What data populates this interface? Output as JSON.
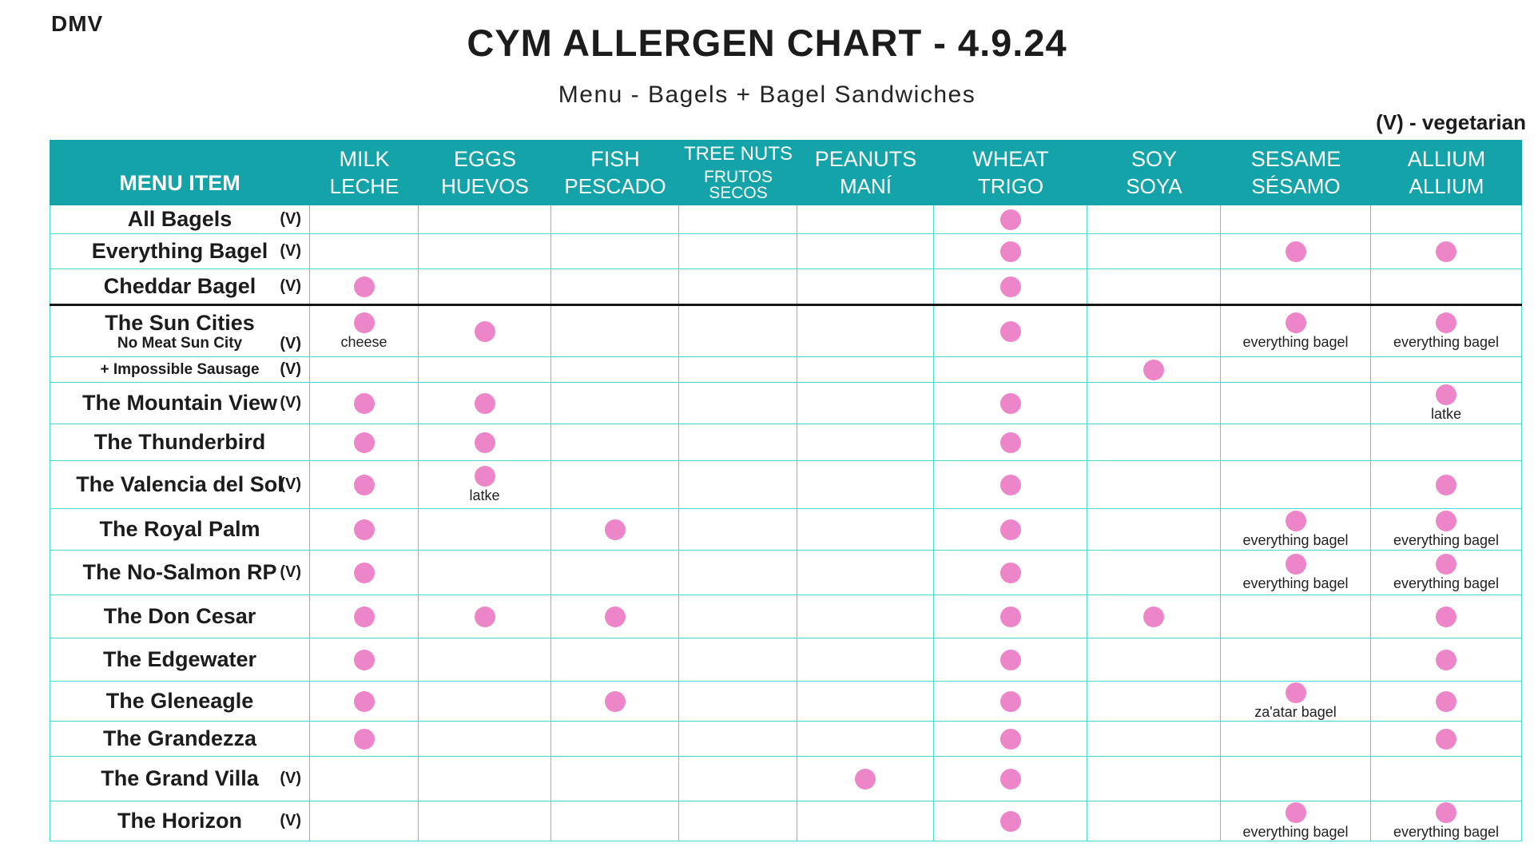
{
  "brand": "DMV",
  "header": {
    "title": "CYM ALLERGEN CHART - 4.9.24",
    "subtitle": "Menu - Bagels + Bagel Sandwiches",
    "legend": "(V) - vegetarian"
  },
  "colors": {
    "teal": "#13a3a9",
    "grid": "#44d8d0",
    "pink": "#ec86c9",
    "ink": "#1c1c1c"
  },
  "chart_data": {
    "type": "table",
    "title": "CYM ALLERGEN CHART - 4.9.24",
    "row_header": "MENU ITEM",
    "veg_marker": "(V)",
    "columns": [
      {
        "key": "milk",
        "en": "MILK",
        "es": "LECHE"
      },
      {
        "key": "eggs",
        "en": "EGGS",
        "es": "HUEVOS"
      },
      {
        "key": "fish",
        "en": "FISH",
        "es": "PESCADO"
      },
      {
        "key": "tree_nuts",
        "en": "TREE NUTS",
        "es": "FRUTOS SECOS",
        "compact": true
      },
      {
        "key": "peanuts",
        "en": "PEANUTS",
        "es": "MANÍ"
      },
      {
        "key": "wheat",
        "en": "WHEAT",
        "es": "TRIGO"
      },
      {
        "key": "soy",
        "en": "SOY",
        "es": "SOYA"
      },
      {
        "key": "sesame",
        "en": "SESAME",
        "es": "SÉSAMO"
      },
      {
        "key": "allium",
        "en": "ALLIUM",
        "es": "ALLIUM"
      }
    ],
    "rows": [
      {
        "name": "All Bagels",
        "v": true,
        "dots": {
          "wheat": true
        }
      },
      {
        "name": "Everything Bagel",
        "v": true,
        "dots": {
          "wheat": true,
          "sesame": true,
          "allium": true
        }
      },
      {
        "name": "Cheddar Bagel",
        "v": true,
        "divider_below": true,
        "dots": {
          "milk": true,
          "wheat": true
        }
      },
      {
        "name": "The Sun Cities",
        "sub": "No Meat Sun City",
        "sub_v": true,
        "dots": {
          "milk": "cheese",
          "eggs": true,
          "wheat": true,
          "sesame": "everything bagel",
          "allium": "everything bagel"
        }
      },
      {
        "name": "+ Impossible Sausage",
        "small": true,
        "v": true,
        "dots": {
          "soy": true
        }
      },
      {
        "name": "The Mountain View",
        "v": true,
        "dots": {
          "milk": true,
          "eggs": true,
          "wheat": true,
          "allium": "latke"
        }
      },
      {
        "name": "The Thunderbird",
        "dots": {
          "milk": true,
          "eggs": true,
          "wheat": true
        }
      },
      {
        "name": "The Valencia del Sol",
        "v": true,
        "dots": {
          "milk": true,
          "eggs": "latke",
          "wheat": true,
          "allium": true
        }
      },
      {
        "name": "The Royal Palm",
        "dots": {
          "milk": true,
          "fish": true,
          "wheat": true,
          "sesame": "everything bagel",
          "allium": "everything bagel"
        }
      },
      {
        "name": "The No-Salmon RP",
        "v": true,
        "dots": {
          "milk": true,
          "wheat": true,
          "sesame": "everything bagel",
          "allium": "everything bagel"
        }
      },
      {
        "name": "The Don Cesar",
        "dots": {
          "milk": true,
          "eggs": true,
          "fish": true,
          "wheat": true,
          "soy": true,
          "allium": true
        }
      },
      {
        "name": "The Edgewater",
        "dots": {
          "milk": true,
          "wheat": true,
          "allium": true
        }
      },
      {
        "name": "The Gleneagle",
        "dots": {
          "milk": true,
          "fish": true,
          "wheat": true,
          "sesame": "za'atar bagel",
          "allium": true
        }
      },
      {
        "name": "The Grandezza",
        "dots": {
          "milk": true,
          "wheat": true,
          "allium": true
        }
      },
      {
        "name": "The Grand Villa",
        "v": true,
        "dots": {
          "peanuts": true,
          "wheat": true
        }
      },
      {
        "name": "The Horizon",
        "v": true,
        "dots": {
          "wheat": true,
          "sesame": "everything bagel",
          "allium": "everything bagel"
        }
      }
    ]
  }
}
